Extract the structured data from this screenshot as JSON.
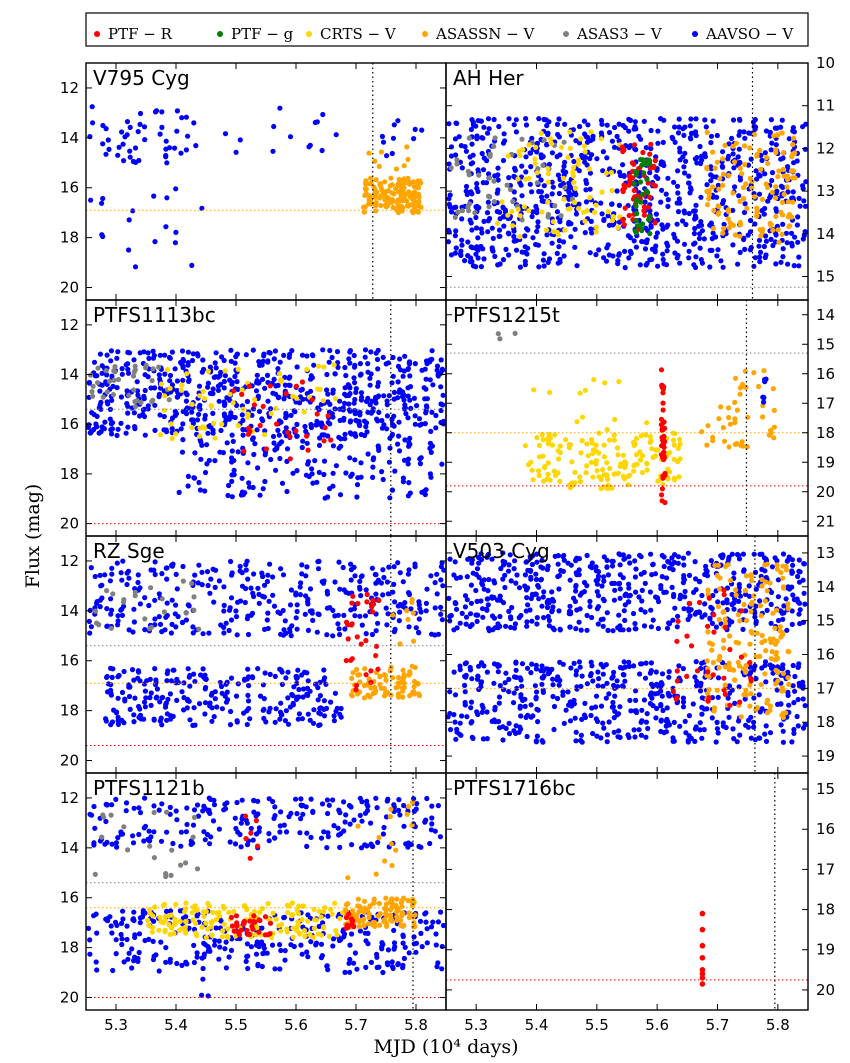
{
  "chart_data": {
    "type": "scatter",
    "figure_xlabel": "MJD (10⁴ days)",
    "figure_ylabel": "Flux (mag)",
    "x_ticks": [
      "5.3",
      "5.4",
      "5.5",
      "5.6",
      "5.7",
      "5.8"
    ],
    "x_tick_values": [
      5.3,
      5.4,
      5.5,
      5.6,
      5.7,
      5.8
    ],
    "xlim": [
      5.25,
      5.85
    ],
    "legend": [
      {
        "name": "PTF − R",
        "color": "#ff0000"
      },
      {
        "name": "PTF − g",
        "color": "#007f00"
      },
      {
        "name": "CRTS − V",
        "color": "#ffd700"
      },
      {
        "name": "ASASSN − V",
        "color": "#ffa500"
      },
      {
        "name": "ASAS3 − V",
        "color": "#808080"
      },
      {
        "name": "AAVSO − V",
        "color": "#0000ff"
      }
    ],
    "panels": [
      {
        "title": "V795 Cyg",
        "side": "left",
        "ylim": [
          20.5,
          11
        ],
        "yticks": [
          12,
          14,
          16,
          18,
          20
        ],
        "ytick_labels": [
          "12",
          "14",
          "16",
          "18",
          "20"
        ],
        "vline": 5.728,
        "hlines": [
          {
            "y": 16.9,
            "color": "#ffa500"
          }
        ],
        "clusters": [
          {
            "survey": "AAVSO − V",
            "x": [
              5.255,
              5.44
            ],
            "y": [
              12.7,
              15.0
            ],
            "n": 50
          },
          {
            "survey": "AAVSO − V",
            "x": [
              5.255,
              5.45
            ],
            "y": [
              16.0,
              19.4
            ],
            "n": 18
          },
          {
            "survey": "AAVSO − V",
            "x": [
              5.46,
              5.7
            ],
            "y": [
              12.8,
              14.6
            ],
            "n": 14
          },
          {
            "survey": "AAVSO − V",
            "x": [
              5.73,
              5.83
            ],
            "y": [
              13.2,
              14.8
            ],
            "n": 10
          },
          {
            "survey": "ASASSN − V",
            "x": [
              5.71,
              5.81
            ],
            "y": [
              15.6,
              17.0
            ],
            "n": 150
          },
          {
            "survey": "ASASSN − V",
            "x": [
              5.71,
              5.8
            ],
            "y": [
              14.2,
              15.6
            ],
            "n": 8
          }
        ]
      },
      {
        "title": "AH Her",
        "side": "right",
        "ylim": [
          15.55,
          10
        ],
        "yticks": [
          10,
          11,
          12,
          13,
          14,
          15
        ],
        "ytick_labels": [
          "10",
          "11",
          "12",
          "13",
          "14",
          "15"
        ],
        "vline": 5.758,
        "hlines": [
          {
            "y": 15.25,
            "color": "#808080"
          }
        ],
        "clusters": [
          {
            "survey": "AAVSO − V",
            "x": [
              5.252,
              5.848
            ],
            "y": [
              11.3,
              14.8
            ],
            "n": 900
          },
          {
            "survey": "ASAS3 − V",
            "x": [
              5.255,
              5.47
            ],
            "y": [
              11.7,
              13.7
            ],
            "n": 45
          },
          {
            "survey": "CRTS − V",
            "x": [
              5.33,
              5.54
            ],
            "y": [
              11.6,
              14.1
            ],
            "n": 80
          },
          {
            "survey": "ASASSN − V",
            "x": [
              5.68,
              5.83
            ],
            "y": [
              11.6,
              14.2
            ],
            "n": 120
          },
          {
            "survey": "PTF − R",
            "x": [
              5.54,
              5.6
            ],
            "y": [
              11.9,
              13.9
            ],
            "n": 55
          },
          {
            "survey": "PTF − g",
            "x": [
              5.56,
              5.59
            ],
            "y": [
              12.1,
              14.0
            ],
            "n": 35
          }
        ]
      },
      {
        "title": "PTFS1113bc",
        "side": "left",
        "ylim": [
          20.5,
          11
        ],
        "yticks": [
          12,
          14,
          16,
          18,
          20
        ],
        "ytick_labels": [
          "12",
          "14",
          "16",
          "18",
          "20"
        ],
        "vline": 5.758,
        "hlines": [
          {
            "y": 15.4,
            "color": "#808080"
          },
          {
            "y": 20.0,
            "color": "#ff0000"
          }
        ],
        "clusters": [
          {
            "survey": "AAVSO − V",
            "x": [
              5.252,
              5.848
            ],
            "y": [
              13.0,
              16.5
            ],
            "n": 650
          },
          {
            "survey": "AAVSO − V",
            "x": [
              5.4,
              5.848
            ],
            "y": [
              16.5,
              19.0
            ],
            "n": 160
          },
          {
            "survey": "ASAS3 − V",
            "x": [
              5.255,
              5.4
            ],
            "y": [
              13.6,
              15.3
            ],
            "n": 35
          },
          {
            "survey": "CRTS − V",
            "x": [
              5.37,
              5.67
            ],
            "y": [
              13.6,
              16.6
            ],
            "n": 60
          },
          {
            "survey": "PTF − R",
            "x": [
              5.49,
              5.66
            ],
            "y": [
              14.3,
              17.4
            ],
            "n": 28
          }
        ]
      },
      {
        "title": "PTFS1215t",
        "side": "right",
        "ylim": [
          21.5,
          13.5
        ],
        "yticks": [
          14,
          15,
          16,
          17,
          18,
          19,
          20,
          21
        ],
        "ytick_labels": [
          "14",
          "15",
          "16",
          "17",
          "18",
          "19",
          "20",
          "21"
        ],
        "vline": 5.748,
        "hlines": [
          {
            "y": 15.3,
            "color": "#808080"
          },
          {
            "y": 18.0,
            "color": "#ffa500"
          },
          {
            "y": 19.8,
            "color": "#ff0000"
          }
        ],
        "clusters": [
          {
            "survey": "ASAS3 − V",
            "x": [
              5.27,
              5.38
            ],
            "y": [
              14.6,
              15.1
            ],
            "n": 3
          },
          {
            "survey": "CRTS − V",
            "x": [
              5.38,
              5.64
            ],
            "y": [
              18.0,
              19.9
            ],
            "n": 160
          },
          {
            "survey": "CRTS − V",
            "x": [
              5.37,
              5.66
            ],
            "y": [
              15.9,
              18.0
            ],
            "n": 12
          },
          {
            "survey": "ASASSN − V",
            "x": [
              5.67,
              5.8
            ],
            "y": [
              15.8,
              18.6
            ],
            "n": 45
          },
          {
            "survey": "PTF − R",
            "x": [
              5.605,
              5.615
            ],
            "y": [
              15.8,
              20.4
            ],
            "n": 40
          },
          {
            "survey": "AAVSO − V",
            "x": [
              5.775,
              5.78
            ],
            "y": [
              16.0,
              17.0
            ],
            "n": 6
          }
        ]
      },
      {
        "title": "RZ Sge",
        "side": "left",
        "ylim": [
          20.5,
          11
        ],
        "yticks": [
          12,
          14,
          16,
          18,
          20
        ],
        "ytick_labels": [
          "12",
          "14",
          "16",
          "18",
          "20"
        ],
        "vline": 5.758,
        "hlines": [
          {
            "y": 15.4,
            "color": "#808080"
          },
          {
            "y": 16.9,
            "color": "#ffa500"
          },
          {
            "y": 19.4,
            "color": "#ff0000"
          }
        ],
        "clusters": [
          {
            "survey": "AAVSO − V",
            "x": [
              5.252,
              5.848
            ],
            "y": [
              12.0,
              15.0
            ],
            "n": 350
          },
          {
            "survey": "AAVSO − V",
            "x": [
              5.28,
              5.68
            ],
            "y": [
              16.3,
              18.6
            ],
            "n": 260
          },
          {
            "survey": "ASAS3 − V",
            "x": [
              5.255,
              5.45
            ],
            "y": [
              12.8,
              14.8
            ],
            "n": 22
          },
          {
            "survey": "ASASSN − V",
            "x": [
              5.69,
              5.81
            ],
            "y": [
              16.2,
              17.5
            ],
            "n": 80
          },
          {
            "survey": "ASASSN − V",
            "x": [
              5.75,
              5.8
            ],
            "y": [
              13.0,
              15.5
            ],
            "n": 8
          },
          {
            "survey": "PTF − R",
            "x": [
              5.68,
              5.74
            ],
            "y": [
              13.0,
              17.2
            ],
            "n": 30
          }
        ]
      },
      {
        "title": "V503 Cyg",
        "side": "right",
        "ylim": [
          19.5,
          12.5
        ],
        "yticks": [
          13,
          14,
          15,
          16,
          17,
          18,
          19
        ],
        "ytick_labels": [
          "13",
          "14",
          "15",
          "16",
          "17",
          "18",
          "19"
        ],
        "vline": 5.762,
        "hlines": [
          {
            "y": 17.0,
            "color": "#ffa500"
          }
        ],
        "clusters": [
          {
            "survey": "AAVSO − V",
            "x": [
              5.252,
              5.848
            ],
            "y": [
              13.0,
              15.3
            ],
            "n": 550
          },
          {
            "survey": "AAVSO − V",
            "x": [
              5.252,
              5.848
            ],
            "y": [
              16.2,
              18.6
            ],
            "n": 500
          },
          {
            "survey": "ASASSN − V",
            "x": [
              5.68,
              5.82
            ],
            "y": [
              13.2,
              17.9
            ],
            "n": 160
          },
          {
            "survey": "PTF − R",
            "x": [
              5.62,
              5.76
            ],
            "y": [
              13.9,
              17.7
            ],
            "n": 35
          }
        ]
      },
      {
        "title": "PTFS1121b",
        "side": "left",
        "ylim": [
          20.5,
          11
        ],
        "yticks": [
          12,
          14,
          16,
          18,
          20
        ],
        "ytick_labels": [
          "12",
          "14",
          "16",
          "18",
          "20"
        ],
        "vline": 5.795,
        "hlines": [
          {
            "y": 15.4,
            "color": "#808080"
          },
          {
            "y": 16.4,
            "color": "#ffa500"
          },
          {
            "y": 20.0,
            "color": "#ff0000"
          }
        ],
        "clusters": [
          {
            "survey": "AAVSO − V",
            "x": [
              5.252,
              5.848
            ],
            "y": [
              12.0,
              14.0
            ],
            "n": 230
          },
          {
            "survey": "AAVSO − V",
            "x": [
              5.252,
              5.848
            ],
            "y": [
              16.5,
              19.0
            ],
            "n": 300
          },
          {
            "survey": "AAVSO − V",
            "x": [
              5.44,
              5.47
            ],
            "y": [
              17.5,
              20.0
            ],
            "n": 12
          },
          {
            "survey": "ASAS3 − V",
            "x": [
              5.255,
              5.45
            ],
            "y": [
              12.5,
              15.2
            ],
            "n": 20
          },
          {
            "survey": "CRTS − V",
            "x": [
              5.35,
              5.68
            ],
            "y": [
              16.2,
              17.6
            ],
            "n": 160
          },
          {
            "survey": "ASASSN − V",
            "x": [
              5.68,
              5.8
            ],
            "y": [
              16.0,
              17.2
            ],
            "n": 120
          },
          {
            "survey": "ASASSN − V",
            "x": [
              5.68,
              5.8
            ],
            "y": [
              12.0,
              15.5
            ],
            "n": 14
          },
          {
            "survey": "PTF − R",
            "x": [
              5.49,
              5.56
            ],
            "y": [
              16.7,
              17.5
            ],
            "n": 30
          },
          {
            "survey": "PTF − R",
            "x": [
              5.5,
              5.54
            ],
            "y": [
              12.5,
              14.5
            ],
            "n": 6
          },
          {
            "survey": "PTF − R",
            "x": [
              5.68,
              5.7
            ],
            "y": [
              16.5,
              17.4
            ],
            "n": 10
          }
        ]
      },
      {
        "title": "PTFS1716bc",
        "side": "right",
        "ylim": [
          20.5,
          14.6
        ],
        "yticks": [
          15,
          16,
          17,
          18,
          19,
          20
        ],
        "ytick_labels": [
          "15",
          "16",
          "17",
          "18",
          "19",
          "20"
        ],
        "vline": 5.795,
        "hlines": [
          {
            "y": 19.75,
            "color": "#ff0000"
          }
        ],
        "points": [
          {
            "survey": "PTF − R",
            "x": 5.675,
            "y": 18.1
          },
          {
            "survey": "PTF − R",
            "x": 5.675,
            "y": 18.5
          },
          {
            "survey": "PTF − R",
            "x": 5.675,
            "y": 18.9
          },
          {
            "survey": "PTF − R",
            "x": 5.675,
            "y": 19.2
          },
          {
            "survey": "PTF − R",
            "x": 5.675,
            "y": 19.5
          },
          {
            "survey": "PTF − R",
            "x": 5.675,
            "y": 19.6
          },
          {
            "survey": "PTF − R",
            "x": 5.675,
            "y": 19.7
          },
          {
            "survey": "PTF − R",
            "x": 5.675,
            "y": 19.85
          }
        ],
        "clusters": []
      }
    ]
  }
}
